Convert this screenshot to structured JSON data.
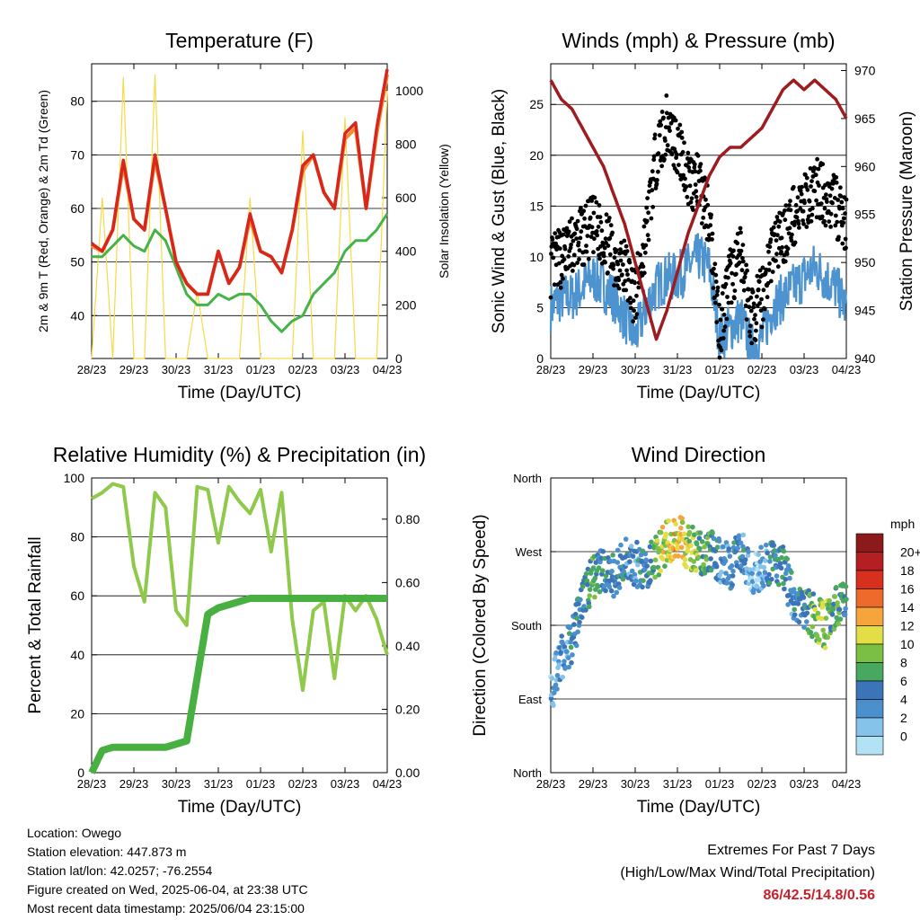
{
  "charts": {
    "temperature": {
      "title": "Temperature (F)",
      "xlabel": "Time (Day/UTC)",
      "ylabel_left": "2m & 9m T (Red, Orange) & 2m Td (Green)",
      "ylabel_right": "Solar Insolation (Yellow)",
      "yticks_left": [
        "40",
        "50",
        "60",
        "70",
        "80"
      ],
      "yticks_right": [
        "0",
        "200",
        "400",
        "600",
        "800",
        "1000"
      ]
    },
    "winds": {
      "title": "Winds (mph) & Pressure (mb)",
      "xlabel": "Time (Day/UTC)",
      "ylabel_left": "Sonic Wind & Gust (Blue, Black)",
      "ylabel_right": "Station Pressure (Maroon)",
      "yticks_left": [
        "0",
        "5",
        "10",
        "15",
        "20",
        "25"
      ],
      "yticks_right": [
        "940",
        "945",
        "950",
        "955",
        "960",
        "965",
        "970"
      ]
    },
    "humidity": {
      "title": "Relative Humidity (%) & Precipitation (in)",
      "xlabel": "Time (Day/UTC)",
      "ylabel_left": "Percent & Total Rainfall",
      "yticks_left": [
        "0",
        "20",
        "40",
        "60",
        "80",
        "100"
      ],
      "yticks_right": [
        "0.00",
        "0.20",
        "0.40",
        "0.60",
        "0.80"
      ]
    },
    "direction": {
      "title": "Wind Direction",
      "xlabel": "Time (Day/UTC)",
      "ylabel_left": "Direction (Colored By Speed)",
      "yticks_left": [
        "North",
        "East",
        "South",
        "West",
        "North"
      ],
      "legend_title": "mph",
      "legend_labels": [
        "20+",
        "18",
        "16",
        "14",
        "12",
        "10",
        "8",
        "6",
        "4",
        "2",
        "0"
      ]
    }
  },
  "xticks": [
    "28/23",
    "29/23",
    "30/23",
    "31/23",
    "01/23",
    "02/23",
    "03/23",
    "04/23"
  ],
  "info": {
    "location": "Location: Owego",
    "elevation": "Station elevation: 447.873 m",
    "latlon": "Station lat/lon: 42.0257; -76.2554",
    "created": "Figure created on Wed, 2025-06-04, at 23:38 UTC",
    "recent": "Most recent data timestamp: 2025/06/04 23:15:00"
  },
  "extremes": {
    "title": "Extremes For Past 7 Days",
    "subtitle": "(High/Low/Max Wind/Total Precipitation)",
    "values": "86/42.5/14.8/0.56"
  },
  "colors": {
    "temp2m": "#d7261e",
    "temp9m": "#f58a2e",
    "dewpoint": "#45b347",
    "solar": "#f7da4a",
    "wind": "#4d93cf",
    "gust": "#000000",
    "pressure": "#9e1b1f",
    "rh": "#8fc94b",
    "precip": "#48b041",
    "scale": [
      "#b3e2f5",
      "#86c3ea",
      "#4a90cd",
      "#3b74b9",
      "#48a85f",
      "#7bbf45",
      "#e3de46",
      "#f6a43c",
      "#ee6a2a",
      "#d7301f",
      "#b31f22",
      "#8c1a1a"
    ]
  },
  "chart_data": [
    {
      "type": "line",
      "title": "Temperature (F)",
      "x": [
        0,
        0.25,
        0.5,
        0.75,
        1,
        1.25,
        1.5,
        1.75,
        2,
        2.25,
        2.5,
        2.75,
        3,
        3.25,
        3.5,
        3.75,
        4,
        4.25,
        4.5,
        4.75,
        5,
        5.25,
        5.5,
        5.75,
        6,
        6.25,
        6.5,
        6.75,
        7
      ],
      "xunit": "days since 28/23",
      "series": [
        {
          "name": "2m T",
          "values": [
            53.5,
            52,
            56,
            69,
            58,
            56,
            70,
            60,
            50,
            46,
            44,
            44,
            52,
            46,
            49,
            59,
            52,
            51,
            48,
            56,
            68,
            70,
            63,
            60,
            74,
            76,
            60,
            75,
            86
          ]
        },
        {
          "name": "9m T",
          "values": [
            53,
            52,
            56,
            68,
            58,
            56,
            69,
            60,
            50,
            46,
            44,
            44,
            52,
            46,
            49,
            58,
            52,
            51,
            48,
            56,
            67,
            70,
            63,
            60,
            73,
            75,
            60,
            74,
            85
          ]
        },
        {
          "name": "2m Td",
          "values": [
            51,
            51,
            53,
            55,
            53,
            52,
            56,
            54,
            49,
            44,
            42,
            42,
            44,
            43,
            44,
            44,
            42,
            39,
            37,
            39,
            40,
            44,
            46,
            48,
            52,
            54,
            54,
            56,
            59
          ]
        },
        {
          "name": "Solar Insolation",
          "values": [
            0,
            600,
            0,
            1050,
            0,
            0,
            1060,
            0,
            0,
            0,
            250,
            0,
            0,
            0,
            0,
            600,
            0,
            0,
            0,
            0,
            850,
            0,
            0,
            0,
            900,
            0,
            0,
            0,
            1000
          ]
        }
      ],
      "ylim": [
        32,
        87
      ],
      "ylim_right": [
        0,
        1100
      ]
    },
    {
      "type": "scatter",
      "title": "Winds (mph) & Pressure (mb)",
      "x": [
        0,
        0.25,
        0.5,
        0.75,
        1,
        1.25,
        1.5,
        1.75,
        2,
        2.25,
        2.5,
        2.75,
        3,
        3.25,
        3.5,
        3.75,
        4,
        4.25,
        4.5,
        4.75,
        5,
        5.25,
        5.5,
        5.75,
        6,
        6.25,
        6.5,
        6.75,
        7
      ],
      "xunit": "days since 28/23",
      "series": [
        {
          "name": "Sonic Wind",
          "values": [
            5,
            6,
            6,
            7,
            8,
            7,
            6,
            4,
            2,
            5,
            7,
            8,
            8,
            9,
            10,
            9,
            2,
            3,
            4,
            1,
            2,
            5,
            6,
            7,
            8,
            9,
            8,
            7,
            5
          ]
        },
        {
          "name": "Gust",
          "values": [
            9,
            10,
            11,
            12,
            13,
            12,
            10,
            9,
            6,
            12,
            20,
            23,
            21,
            18,
            17,
            14,
            3,
            8,
            10,
            4,
            6,
            11,
            12,
            14,
            15,
            17,
            16,
            15,
            13
          ]
        },
        {
          "name": "Station Pressure",
          "values": [
            969,
            967,
            966,
            964,
            962,
            960,
            957,
            954,
            950,
            946,
            942,
            945,
            949,
            953,
            956,
            959,
            961,
            962,
            962,
            963,
            964,
            966,
            968,
            969,
            968,
            969,
            968,
            967,
            965
          ]
        }
      ],
      "ylim": [
        0,
        29
      ],
      "ylim_right": [
        940,
        970.7
      ]
    },
    {
      "type": "line",
      "title": "Relative Humidity (%) & Precipitation (in)",
      "x": [
        0,
        0.25,
        0.5,
        0.75,
        1,
        1.25,
        1.5,
        1.75,
        2,
        2.25,
        2.5,
        2.75,
        3,
        3.25,
        3.5,
        3.75,
        4,
        4.25,
        4.5,
        4.75,
        5,
        5.25,
        5.5,
        5.75,
        6,
        6.25,
        6.5,
        6.75,
        7
      ],
      "xunit": "days since 28/23",
      "series": [
        {
          "name": "Relative Humidity",
          "values": [
            93,
            95,
            98,
            97,
            70,
            58,
            95,
            90,
            55,
            50,
            97,
            96,
            78,
            97,
            92,
            88,
            96,
            75,
            95,
            52,
            28,
            55,
            58,
            32,
            60,
            55,
            60,
            52,
            40
          ]
        },
        {
          "name": "Total Precipitation",
          "values": [
            0,
            0.07,
            0.08,
            0.08,
            0.08,
            0.08,
            0.08,
            0.08,
            0.09,
            0.1,
            0.3,
            0.5,
            0.52,
            0.53,
            0.54,
            0.55,
            0.55,
            0.55,
            0.55,
            0.55,
            0.55,
            0.55,
            0.55,
            0.55,
            0.55,
            0.55,
            0.55,
            0.55,
            0.55
          ]
        }
      ],
      "ylim": [
        0,
        100
      ],
      "ylim_right": [
        0,
        0.93
      ]
    },
    {
      "type": "scatter",
      "title": "Wind Direction",
      "x": [
        0,
        0.25,
        0.5,
        0.75,
        1,
        1.25,
        1.5,
        1.75,
        2,
        2.25,
        2.5,
        2.75,
        3,
        3.25,
        3.5,
        3.75,
        4,
        4.25,
        4.5,
        4.75,
        5,
        5.25,
        5.5,
        5.75,
        6,
        6.25,
        6.5,
        6.75,
        7
      ],
      "xunit": "days since 28/23",
      "series": [
        {
          "name": "Direction (degrees)",
          "values": [
            100,
            140,
            160,
            210,
            240,
            250,
            240,
            260,
            255,
            250,
            265,
            280,
            290,
            275,
            270,
            270,
            260,
            250,
            270,
            245,
            250,
            260,
            250,
            210,
            200,
            190,
            180,
            200,
            210
          ]
        },
        {
          "name": "Speed (mph)",
          "values": [
            3,
            4,
            5,
            7,
            8,
            6,
            6,
            5,
            4,
            6,
            9,
            12,
            13,
            11,
            9,
            8,
            4,
            5,
            6,
            2,
            3,
            6,
            7,
            5,
            6,
            9,
            10,
            8,
            6
          ]
        }
      ],
      "ylim": [
        0,
        360
      ]
    }
  ]
}
